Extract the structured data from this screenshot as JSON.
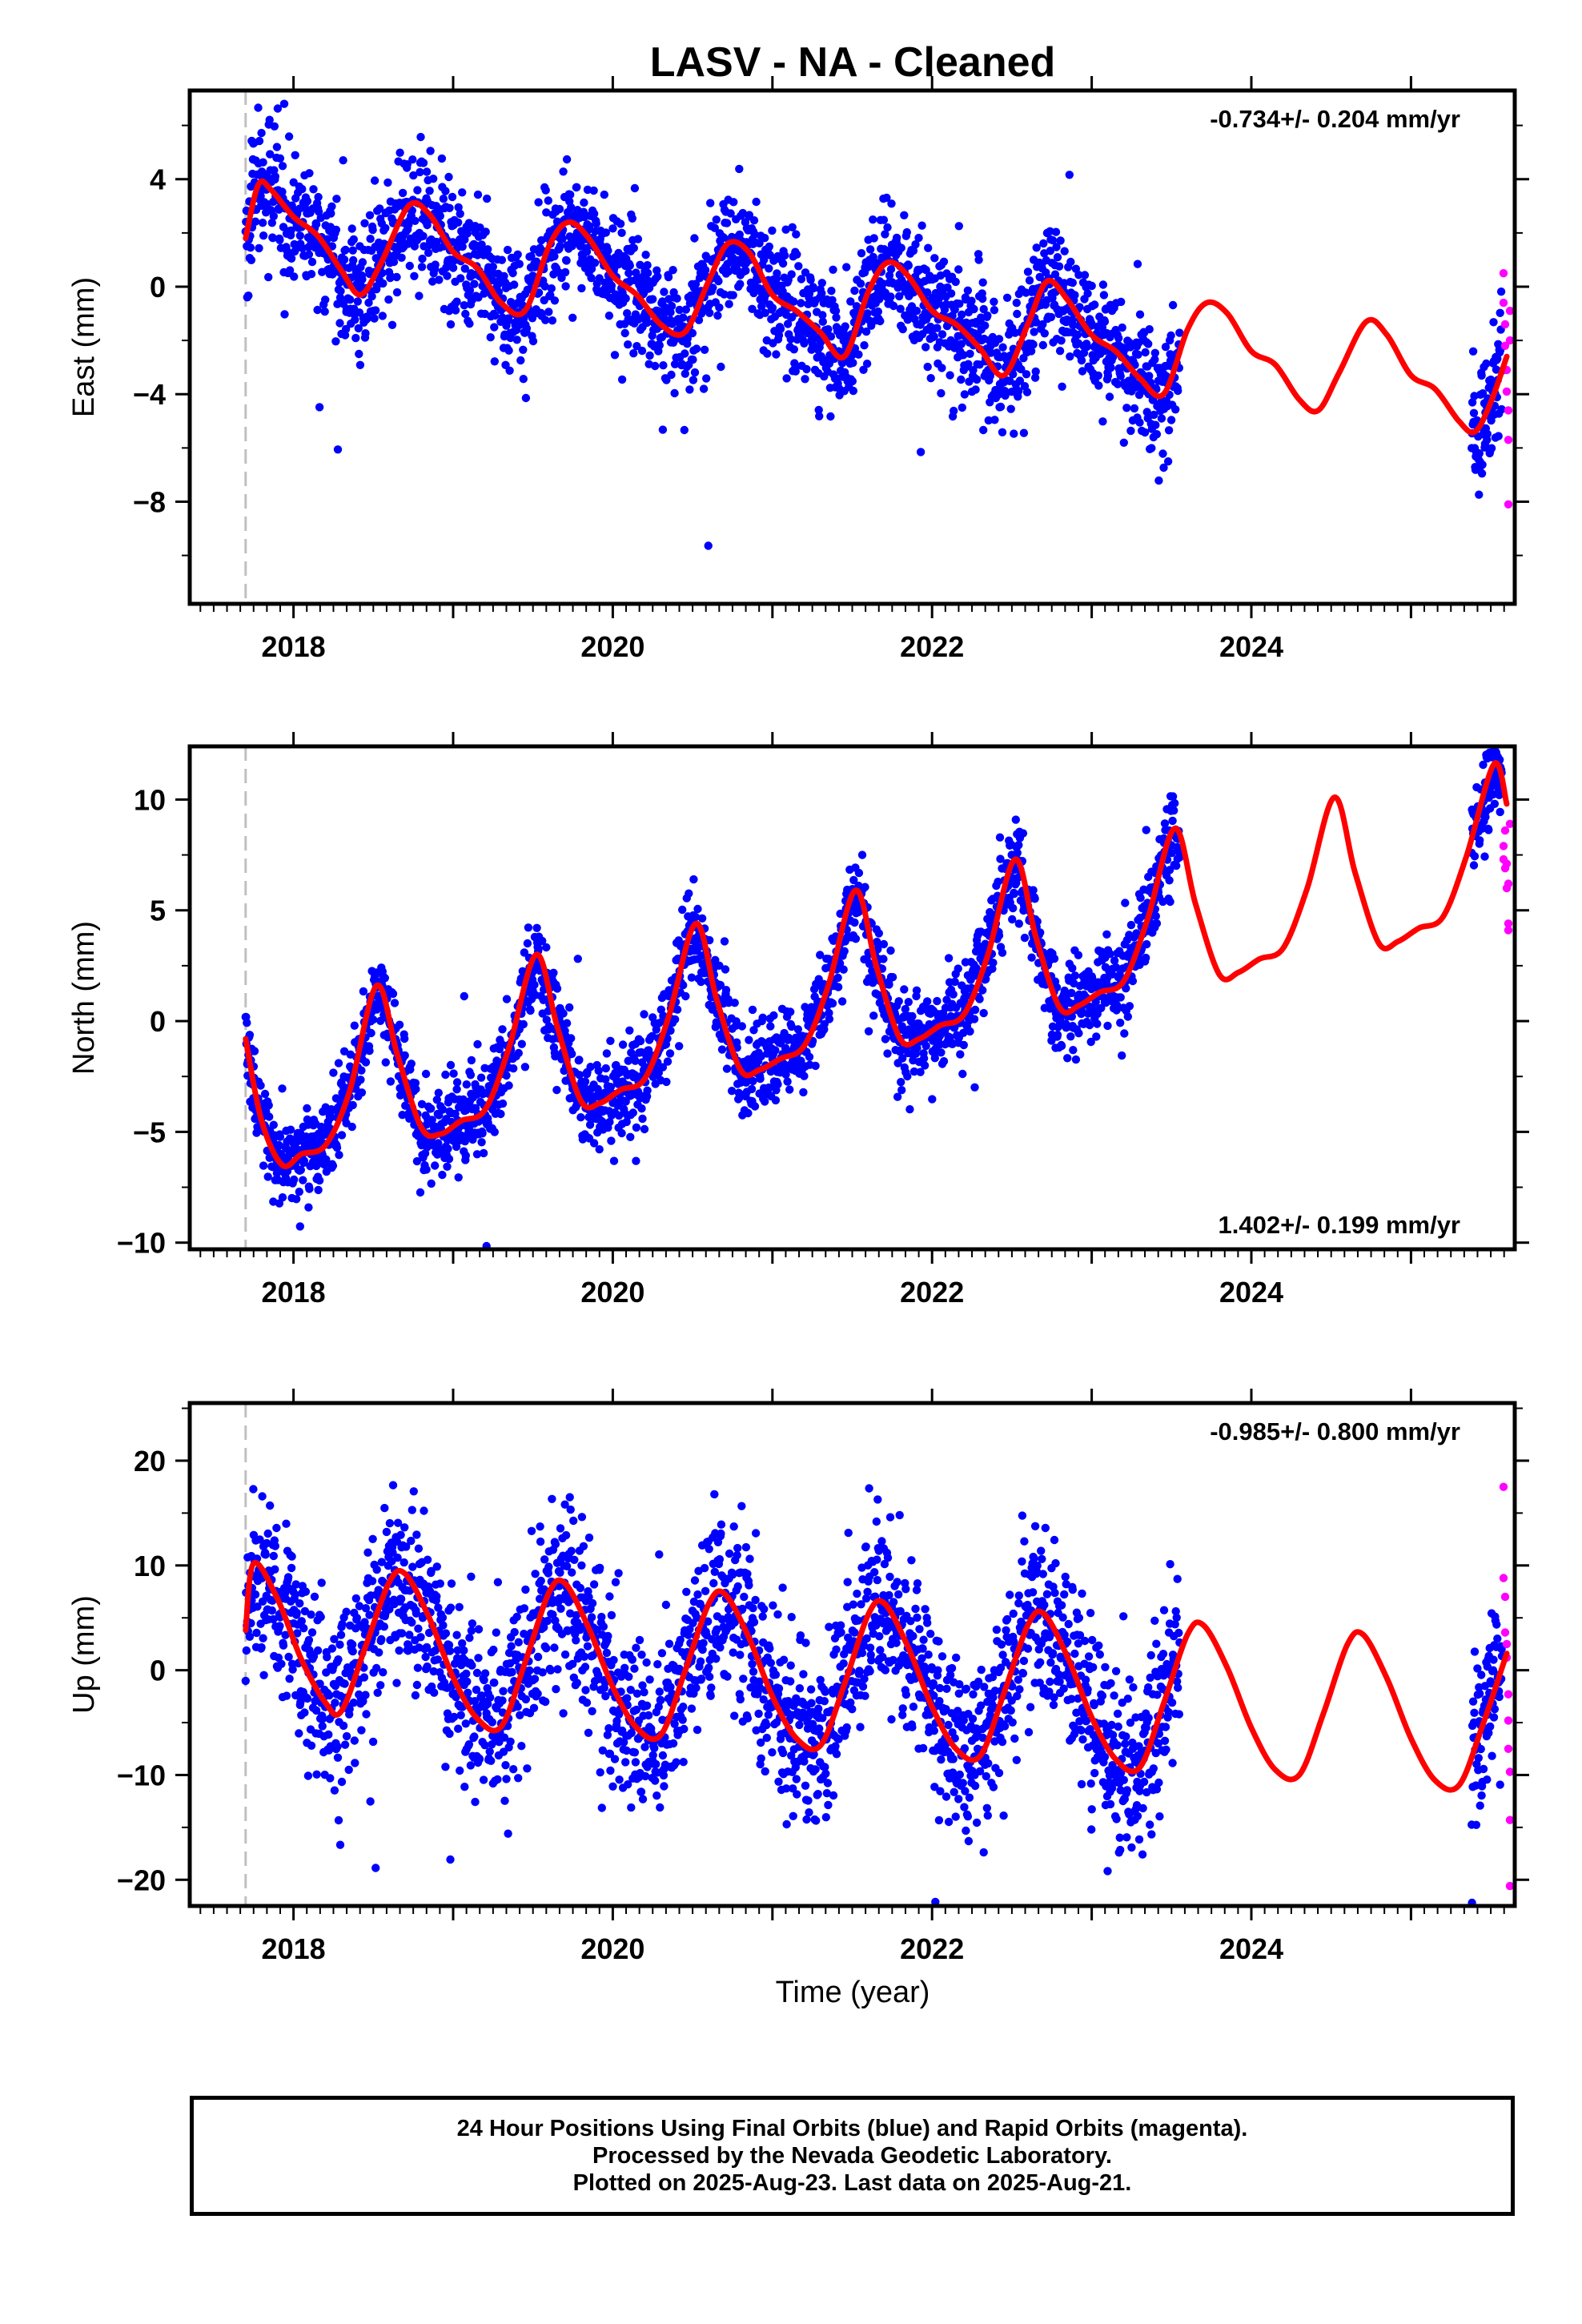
{
  "title": "LASV  - NA - Cleaned",
  "colors": {
    "final_orbits": "#0000ff",
    "rapid_orbits": "#ff00ff",
    "model": "#ff0000",
    "reference_line": "#c0c0c0"
  },
  "xlabel": "Time (year)",
  "footer": {
    "line1": "24 Hour Positions Using Final Orbits (blue) and Rapid Orbits (magenta).",
    "line2": "Processed by the Nevada Geodetic Laboratory.",
    "line3": "Plotted on 2025-Aug-23. Last data on 2025-Aug-21."
  },
  "chart_data": [
    {
      "type": "scatter",
      "ylabel": "East (mm)",
      "rate_label": "-0.734+/- 0.204 mm/yr",
      "rate_position": "top-right",
      "xlim": [
        2017.35,
        2025.65
      ],
      "ylim": [
        -11.8,
        7.3
      ],
      "x_ticks": [
        2018,
        2020,
        2022,
        2024
      ],
      "y_ticks": [
        -8,
        -4,
        0,
        4
      ],
      "reference_line_x": 2017.7,
      "model": {
        "name": "model fit",
        "x": [
          2017.7,
          2017.78,
          2017.86,
          2018.0,
          2018.15,
          2018.3,
          2018.42,
          2018.55,
          2018.72,
          2018.85,
          2019.0,
          2019.15,
          2019.3,
          2019.45,
          2019.6,
          2019.72,
          2019.85,
          2020.0,
          2020.15,
          2020.3,
          2020.45,
          2020.6,
          2020.72,
          2020.85,
          2021.0,
          2021.15,
          2021.3,
          2021.45,
          2021.6,
          2021.72,
          2021.85,
          2022.0,
          2022.15,
          2022.3,
          2022.45,
          2022.6,
          2022.72,
          2022.85,
          2023.0,
          2023.15,
          2023.3,
          2023.45,
          2023.6,
          2023.72,
          2023.85,
          2024.0,
          2024.15,
          2024.3,
          2024.42,
          2024.55,
          2024.72,
          2024.85,
          2025.0,
          2025.15,
          2025.3,
          2025.4,
          2025.5,
          2025.6
        ],
        "y": [
          1.8,
          3.8,
          3.6,
          2.6,
          1.9,
          0.6,
          -0.3,
          0.9,
          3.0,
          2.7,
          1.3,
          0.7,
          -0.6,
          -0.9,
          1.5,
          2.4,
          1.8,
          0.4,
          -0.3,
          -1.4,
          -1.7,
          0.2,
          1.6,
          1.3,
          -0.3,
          -0.9,
          -1.7,
          -2.6,
          -0.2,
          0.9,
          0.4,
          -0.9,
          -1.4,
          -2.3,
          -3.3,
          -1.4,
          0.2,
          -0.5,
          -1.8,
          -2.4,
          -3.4,
          -4.0,
          -1.6,
          -0.6,
          -1.0,
          -2.4,
          -2.9,
          -4.2,
          -4.6,
          -3.2,
          -1.3,
          -1.8,
          -3.3,
          -3.8,
          -5.0,
          -5.4,
          -4.3,
          -2.6
        ]
      },
      "series": [
        {
          "name": "final orbits",
          "x_range": [
            2017.7,
            2023.55
          ],
          "x_range_2": [
            2025.38,
            2025.57
          ],
          "point_count": 2300
        },
        {
          "name": "rapid orbits",
          "x": [
            2025.58,
            2025.58,
            2025.59,
            2025.59,
            2025.6,
            2025.6,
            2025.61,
            2025.61,
            2025.61,
            2025.62,
            2025.62
          ],
          "y": [
            0.5,
            -0.6,
            -1.4,
            -2.2,
            -3.1,
            -3.9,
            -4.6,
            -5.7,
            -8.1,
            -0.9,
            -2.0
          ]
        }
      ]
    },
    {
      "type": "scatter",
      "ylabel": "North (mm)",
      "rate_label": "1.402+/- 0.199 mm/yr",
      "rate_position": "bottom-right",
      "xlim": [
        2017.35,
        2025.65
      ],
      "ylim": [
        -10.3,
        12.4
      ],
      "x_ticks": [
        2018,
        2020,
        2022,
        2024
      ],
      "y_ticks": [
        -10,
        -5,
        0,
        5,
        10
      ],
      "reference_line_x": 2017.7,
      "model": {
        "name": "model fit",
        "x": [
          2017.7,
          2017.8,
          2017.93,
          2018.05,
          2018.2,
          2018.35,
          2018.52,
          2018.65,
          2018.8,
          2018.92,
          2019.05,
          2019.2,
          2019.35,
          2019.52,
          2019.65,
          2019.8,
          2019.92,
          2020.05,
          2020.2,
          2020.35,
          2020.52,
          2020.65,
          2020.8,
          2020.92,
          2021.05,
          2021.2,
          2021.35,
          2021.52,
          2021.65,
          2021.8,
          2021.92,
          2022.05,
          2022.2,
          2022.35,
          2022.52,
          2022.65,
          2022.8,
          2022.92,
          2023.05,
          2023.2,
          2023.35,
          2023.52,
          2023.65,
          2023.8,
          2023.92,
          2024.05,
          2024.2,
          2024.35,
          2024.52,
          2024.65,
          2024.8,
          2024.92,
          2025.05,
          2025.2,
          2025.35,
          2025.52,
          2025.6
        ],
        "y": [
          -0.8,
          -4.5,
          -6.5,
          -6.0,
          -5.6,
          -3.2,
          1.6,
          -1.5,
          -4.8,
          -5.1,
          -4.5,
          -4.0,
          -1.2,
          3.0,
          -0.2,
          -3.6,
          -3.7,
          -3.1,
          -2.6,
          0.2,
          4.4,
          1.0,
          -2.2,
          -2.2,
          -1.7,
          -1.1,
          1.6,
          5.9,
          2.5,
          -0.8,
          -0.8,
          -0.2,
          0.3,
          3.0,
          7.3,
          3.8,
          0.6,
          0.7,
          1.3,
          1.8,
          4.6,
          8.7,
          5.3,
          2.1,
          2.2,
          2.8,
          3.3,
          6.0,
          10.1,
          6.7,
          3.5,
          3.6,
          4.2,
          4.7,
          7.5,
          11.6,
          9.8
        ]
      },
      "series": [
        {
          "name": "final orbits",
          "x_range": [
            2017.7,
            2023.55
          ],
          "x_range_2": [
            2025.38,
            2025.57
          ],
          "point_count": 2300
        },
        {
          "name": "rapid orbits",
          "x": [
            2025.58,
            2025.58,
            2025.59,
            2025.59,
            2025.6,
            2025.6,
            2025.61,
            2025.61,
            2025.61,
            2025.62
          ],
          "y": [
            7.9,
            7.3,
            8.6,
            6.9,
            6.0,
            7.1,
            6.2,
            4.4,
            4.1,
            8.9
          ]
        }
      ]
    },
    {
      "type": "scatter",
      "ylabel": "Up (mm)",
      "rate_label": "-0.985+/- 0.800 mm/yr",
      "rate_position": "top-right",
      "xlim": [
        2017.35,
        2025.65
      ],
      "ylim": [
        -22.5,
        25.5
      ],
      "x_ticks": [
        2018,
        2020,
        2022,
        2024
      ],
      "y_ticks": [
        -20,
        -10,
        0,
        10,
        20
      ],
      "reference_line_x": 2017.7,
      "model": {
        "name": "model fit",
        "x": [
          2017.7,
          2017.75,
          2017.9,
          2018.05,
          2018.2,
          2018.3,
          2018.45,
          2018.6,
          2018.7,
          2018.85,
          2019.0,
          2019.15,
          2019.3,
          2019.45,
          2019.6,
          2019.7,
          2019.85,
          2020.0,
          2020.15,
          2020.3,
          2020.45,
          2020.6,
          2020.7,
          2020.85,
          2021.0,
          2021.15,
          2021.3,
          2021.45,
          2021.6,
          2021.7,
          2021.85,
          2022.0,
          2022.15,
          2022.3,
          2022.45,
          2022.6,
          2022.7,
          2022.85,
          2023.0,
          2023.15,
          2023.3,
          2023.45,
          2023.6,
          2023.7,
          2023.85,
          2024.0,
          2024.15,
          2024.3,
          2024.45,
          2024.6,
          2024.7,
          2024.85,
          2025.0,
          2025.15,
          2025.3,
          2025.45,
          2025.6
        ],
        "y": [
          3.8,
          10.2,
          6.8,
          1.0,
          -3.1,
          -3.9,
          2.2,
          8.4,
          9.2,
          5.0,
          -0.7,
          -4.6,
          -5.4,
          0.7,
          7.4,
          8.3,
          4.0,
          -1.6,
          -5.5,
          -6.2,
          -0.2,
          6.3,
          7.3,
          3.2,
          -2.5,
          -6.5,
          -7.2,
          -1.4,
          5.3,
          6.4,
          2.2,
          -3.5,
          -7.5,
          -8.2,
          -2.2,
          4.3,
          5.4,
          1.2,
          -4.5,
          -8.5,
          -9.3,
          -3.2,
          3.4,
          4.3,
          0.2,
          -5.5,
          -9.5,
          -10.0,
          -4.2,
          2.4,
          3.4,
          -0.8,
          -6.5,
          -10.5,
          -11.0,
          -5.2,
          1.6
        ]
      },
      "series": [
        {
          "name": "final orbits",
          "x_range": [
            2017.7,
            2023.55
          ],
          "x_range_2": [
            2025.38,
            2025.57
          ],
          "point_count": 2300
        },
        {
          "name": "rapid orbits",
          "x": [
            2025.58,
            2025.58,
            2025.59,
            2025.59,
            2025.6,
            2025.6,
            2025.61,
            2025.61,
            2025.61,
            2025.62,
            2025.62,
            2025.62
          ],
          "y": [
            17.5,
            8.8,
            7.0,
            3.6,
            2.5,
            1.2,
            -2.3,
            -4.8,
            -7.5,
            -9.7,
            -14.3,
            -20.6
          ]
        }
      ]
    }
  ]
}
